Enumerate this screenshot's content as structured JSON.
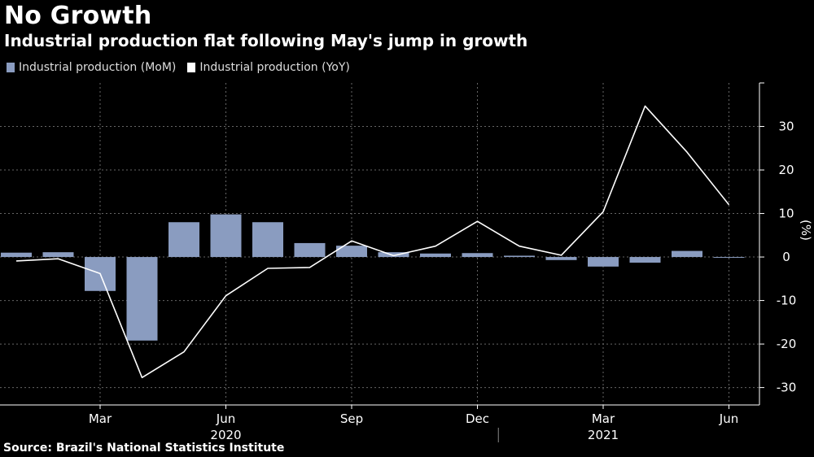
{
  "header": {
    "title": "No Growth",
    "subtitle": "Industrial production flat following May's jump in growth"
  },
  "legend": {
    "items": [
      {
        "label": "Industrial production (MoM)",
        "color": "#8a9cc0"
      },
      {
        "label": "Industrial production (YoY)",
        "color": "#ffffff"
      }
    ]
  },
  "footer": {
    "source": "Source: Brazil's National Statistics Institute"
  },
  "chart_data": {
    "type": "bar",
    "categories": [
      "2020-01",
      "2020-02",
      "2020-03",
      "2020-04",
      "2020-05",
      "2020-06",
      "2020-07",
      "2020-08",
      "2020-09",
      "2020-10",
      "2020-11",
      "2020-12",
      "2021-01",
      "2021-02",
      "2021-03",
      "2021-04",
      "2021-05",
      "2021-06"
    ],
    "x_tick_labels": [
      "Mar",
      "Jun",
      "Sep",
      "Dec",
      "Mar",
      "Jun"
    ],
    "x_tick_months": [
      "2020-03",
      "2020-06",
      "2020-09",
      "2020-12",
      "2021-03",
      "2021-06"
    ],
    "x_year_labels": [
      {
        "label": "2020",
        "month": "2020-06"
      },
      {
        "label": "2021",
        "month": "2021-03"
      }
    ],
    "series": [
      {
        "name": "Industrial production (MoM)",
        "type": "bar",
        "color": "#8a9cc0",
        "values": [
          1.0,
          1.1,
          -7.8,
          -19.2,
          8.0,
          9.8,
          8.0,
          3.2,
          2.6,
          1.1,
          0.8,
          0.9,
          0.3,
          -0.7,
          -2.2,
          -1.3,
          1.4,
          0.0
        ]
      },
      {
        "name": "Industrial production (YoY)",
        "type": "line",
        "color": "#ffffff",
        "values": [
          -0.9,
          -0.4,
          -3.8,
          -27.7,
          -21.8,
          -8.9,
          -2.6,
          -2.4,
          3.7,
          0.3,
          2.5,
          8.2,
          2.5,
          0.4,
          10.4,
          34.7,
          24.1,
          12.0
        ]
      }
    ],
    "y_axis": {
      "label": "(%)",
      "ticks": [
        30,
        20,
        10,
        0,
        -10,
        -20,
        -30
      ],
      "ylim": [
        -34,
        40
      ],
      "position": "right"
    },
    "grid": true
  }
}
